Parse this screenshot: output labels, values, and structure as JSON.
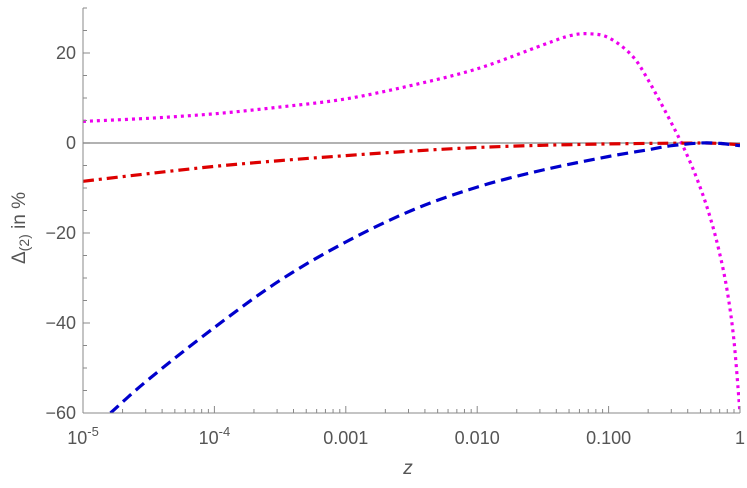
{
  "chart_data": {
    "type": "line",
    "title": "",
    "xlabel": "z",
    "ylabel": "Δ(2) in %",
    "ylabel_parts": {
      "symbol": "Δ",
      "subscript": "(2)",
      "suffix": " in %"
    },
    "xscale": "log10",
    "xlim": [
      1e-05,
      1
    ],
    "ylim": [
      -60,
      30
    ],
    "grid": false,
    "legend": "none",
    "x_ticks": [
      {
        "value": 1e-05,
        "label": "10",
        "exponent": "-5"
      },
      {
        "value": 0.0001,
        "label": "10",
        "exponent": "-4"
      },
      {
        "value": 0.001,
        "label": "0.001"
      },
      {
        "value": 0.01,
        "label": "0.010"
      },
      {
        "value": 0.1,
        "label": "0.100"
      },
      {
        "value": 1,
        "label": "1"
      }
    ],
    "y_ticks": [
      {
        "value": 20,
        "label": "20"
      },
      {
        "value": 0,
        "label": "0"
      },
      {
        "value": -20,
        "label": "−20"
      },
      {
        "value": -40,
        "label": "−40"
      },
      {
        "value": -60,
        "label": "−60"
      }
    ],
    "reference_lines": [
      {
        "y": 0,
        "color": "#999999"
      }
    ],
    "series": [
      {
        "name": "magenta dotted",
        "color": "#ee00ee",
        "style": "dotted",
        "x": [
          1e-05,
          3.16e-05,
          0.0001,
          0.000316,
          0.001,
          0.00316,
          0.01,
          0.0316,
          0.05,
          0.07,
          0.1,
          0.15,
          0.2,
          0.3,
          0.4,
          0.5,
          0.6,
          0.7,
          0.8,
          0.9,
          1
        ],
        "y": [
          4.8,
          5.5,
          6.5,
          8.0,
          9.8,
          12.8,
          16.5,
          21.8,
          23.8,
          24.3,
          23.4,
          19.5,
          14.0,
          4.5,
          -3.0,
          -10.0,
          -17.0,
          -24.5,
          -33.0,
          -44.0,
          -60.0
        ]
      },
      {
        "name": "red dash-dot",
        "color": "#dd0000",
        "style": "dashdot",
        "x": [
          1e-05,
          3.16e-05,
          0.0001,
          0.000316,
          0.001,
          0.00316,
          0.01,
          0.0316,
          0.1,
          0.2,
          0.3,
          0.5,
          0.7,
          1
        ],
        "y": [
          -8.5,
          -6.8,
          -5.2,
          -3.9,
          -2.8,
          -1.8,
          -1.0,
          -0.5,
          -0.2,
          -0.1,
          -0.05,
          0.0,
          -0.1,
          -0.4
        ]
      },
      {
        "name": "blue dashed",
        "color": "#0000cc",
        "style": "dashed",
        "x": [
          1.62e-05,
          3.16e-05,
          0.0001,
          0.000316,
          0.001,
          0.00316,
          0.01,
          0.0316,
          0.1,
          0.2,
          0.3,
          0.5,
          0.7,
          1
        ],
        "y": [
          -60.0,
          -52.5,
          -41.0,
          -30.5,
          -22.0,
          -15.0,
          -9.8,
          -6.0,
          -3.0,
          -1.5,
          -0.6,
          0.0,
          -0.1,
          -0.6
        ]
      }
    ]
  }
}
